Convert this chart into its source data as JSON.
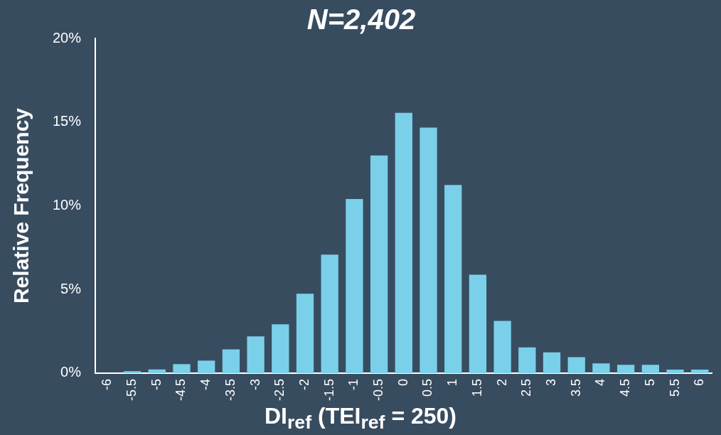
{
  "chart_data": {
    "type": "bar",
    "title": "N=2,402",
    "xlabel": "DI$_{ref}$ (TEI$_{ref}$ = 250)",
    "ylabel": "Relative Frequency",
    "categories": [
      "-6",
      "-5.5",
      "-5",
      "-4.5",
      "-4",
      "-3.5",
      "-3",
      "-2.5",
      "-2",
      "-1.5",
      "-1",
      "-0.5",
      "0",
      "0.5",
      "1",
      "1.5",
      "2",
      "2.5",
      "3",
      "3.5",
      "4",
      "4.5",
      "5",
      "5.5",
      "6"
    ],
    "values": [
      0,
      0.12,
      0.22,
      0.54,
      0.75,
      1.42,
      2.2,
      2.92,
      4.74,
      7.08,
      10.4,
      13.0,
      15.55,
      14.67,
      11.24,
      5.88,
      3.12,
      1.54,
      1.24,
      0.96,
      0.58,
      0.5,
      0.5,
      0.21,
      0.21
    ],
    "color": "#7ad0e8",
    "ylim": [
      0,
      20
    ],
    "yticks": [
      {
        "value": 0,
        "label": "0%"
      },
      {
        "value": 5,
        "label": "5%"
      },
      {
        "value": 10,
        "label": "10%"
      },
      {
        "value": 15,
        "label": "15%"
      },
      {
        "value": 20,
        "label": "20%"
      }
    ],
    "grid": false,
    "legend": false
  }
}
